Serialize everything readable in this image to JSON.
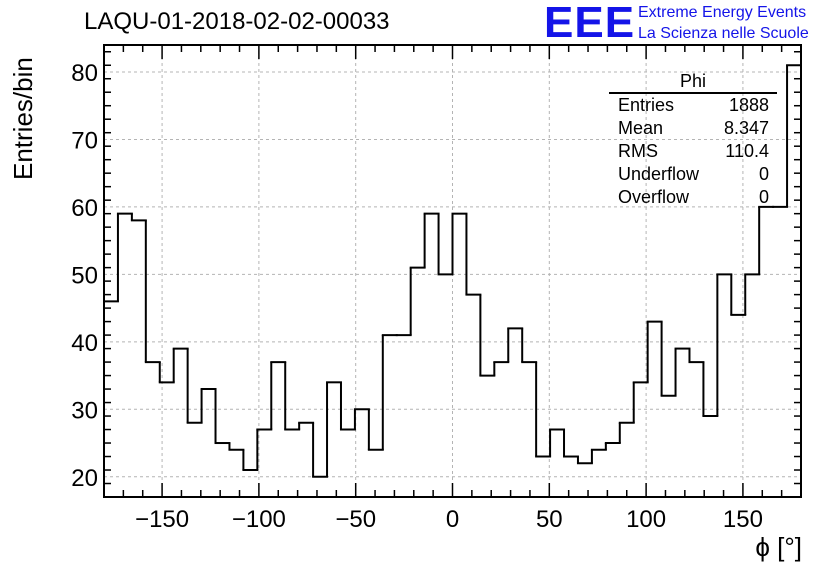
{
  "header": {
    "run_title": "LAQU-01-2018-02-02-00033",
    "logo": "EEE",
    "logo_line1": "Extreme Energy Events",
    "logo_line2": "La Scienza nelle Scuole",
    "logo_color": "#1414e8"
  },
  "stats": {
    "title": "Phi",
    "rows": [
      {
        "label": "Entries",
        "value": "1888"
      },
      {
        "label": "Mean",
        "value": "8.347"
      },
      {
        "label": "RMS",
        "value": "110.4"
      },
      {
        "label": "Underflow",
        "value": "0"
      },
      {
        "label": "Overflow",
        "value": "0"
      }
    ]
  },
  "chart_data": {
    "type": "histogram",
    "title": "LAQU-01-2018-02-02-00033",
    "xlabel": "ϕ [°]",
    "ylabel": "Entries/bin",
    "xlim": [
      -180,
      180
    ],
    "ylim": [
      17,
      84
    ],
    "bin_width": 7.2,
    "bin_edges_start": -180,
    "values": [
      46,
      59,
      58,
      37,
      34,
      39,
      28,
      33,
      25,
      24,
      21,
      27,
      37,
      27,
      28,
      20,
      34,
      27,
      30,
      24,
      41,
      41,
      51,
      59,
      50,
      59,
      47,
      35,
      37,
      42,
      37,
      23,
      27,
      23,
      22,
      24,
      25,
      28,
      34,
      43,
      32,
      39,
      37,
      29,
      50,
      44,
      50,
      60,
      60,
      81
    ],
    "x_ticks": [
      -150,
      -100,
      -50,
      0,
      50,
      100,
      150
    ],
    "x_tick_labels": [
      "−150",
      "−100",
      "−50",
      "0",
      "50",
      "100",
      "150"
    ],
    "y_ticks": [
      20,
      30,
      40,
      50,
      60,
      70,
      80
    ],
    "y_tick_labels": [
      "20",
      "30",
      "40",
      "50",
      "60",
      "70",
      "80"
    ],
    "grid": true,
    "line_color": "#000000"
  }
}
